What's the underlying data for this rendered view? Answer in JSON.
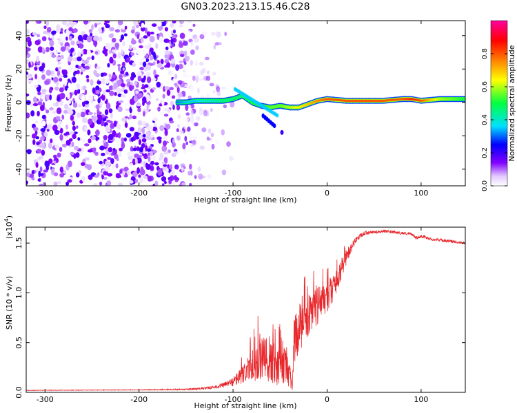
{
  "figure_title": "GN03.2023.213.15.46.C28",
  "chart_data": [
    {
      "type": "heatmap",
      "title": "GN03.2023.213.15.46.C28",
      "xlabel": "Height of straight line (km)",
      "ylabel": "Frequency (Hz)",
      "xlim": [
        -320,
        147
      ],
      "ylim": [
        -50,
        49
      ],
      "x_ticks": [
        -300,
        -200,
        -100,
        0,
        100
      ],
      "y_ticks": [
        -40,
        -20,
        0,
        20,
        40
      ],
      "x_tick_labels": [
        "-300",
        "-200",
        "-100",
        "0",
        "100"
      ],
      "y_tick_labels": [
        "-40",
        "-20",
        "0",
        "20",
        "40"
      ],
      "colorbar": {
        "label": "Normalized spectral amplitude",
        "range": [
          0,
          1
        ],
        "ticks": [
          0.0,
          0.2,
          0.4,
          0.6,
          0.8
        ],
        "tick_labels": [
          "0.0",
          "0.2",
          "0.4",
          "0.6",
          "0.8"
        ],
        "colors": [
          "#ffffff",
          "#8000ff",
          "#0000ff",
          "#00e0ff",
          "#00ff40",
          "#ffff00",
          "#ff8000",
          "#ff0000",
          "#ff00a0"
        ]
      },
      "noise_region": {
        "x_range": [
          -320,
          -130
        ],
        "freq_range": [
          -50,
          49
        ],
        "amplitude": [
          0.0,
          0.2
        ]
      },
      "signal_track": {
        "x": [
          -160,
          -150,
          -140,
          -130,
          -120,
          -110,
          -100,
          -90,
          -80,
          -70,
          -60,
          -50,
          -40,
          -30,
          -20,
          -10,
          0,
          20,
          40,
          60,
          80,
          90,
          100,
          120,
          147
        ],
        "frequency": [
          0,
          0,
          1,
          1,
          1,
          1,
          2,
          4,
          0,
          -2,
          -3,
          -2,
          -3,
          -3,
          -1,
          1,
          2,
          1,
          1,
          1,
          2,
          2,
          1,
          2,
          2
        ],
        "amplitude": [
          0.3,
          0.35,
          0.35,
          0.4,
          0.4,
          0.45,
          0.45,
          0.45,
          0.5,
          0.5,
          0.55,
          0.55,
          0.6,
          0.65,
          0.7,
          0.75,
          0.8,
          0.8,
          0.8,
          0.8,
          0.8,
          0.85,
          0.8,
          0.6,
          0.5
        ]
      }
    },
    {
      "type": "line",
      "xlabel": "Height of straight line (km)",
      "ylabel": "SNR (10 * v/v)",
      "y_multiplier": "(x10",
      "y_multiplier_exp": "4",
      "y_multiplier_close": ")",
      "xlim": [
        -320,
        147
      ],
      "ylim": [
        0,
        16600
      ],
      "x_ticks": [
        -300,
        -200,
        -100,
        0,
        100
      ],
      "y_ticks": [
        0,
        5000,
        10000,
        15000
      ],
      "x_tick_labels": [
        "-300",
        "-200",
        "-100",
        "0",
        "100"
      ],
      "y_tick_labels": [
        "0.0",
        "0.5",
        "1.0",
        "1.5"
      ],
      "series": [
        {
          "color": "#e8282c",
          "x": [
            -320,
            -200,
            -150,
            -130,
            -115,
            -105,
            -100,
            -92,
            -85,
            -80,
            -75,
            -70,
            -65,
            -60,
            -55,
            -50,
            -45,
            -40,
            -37,
            -35,
            -33,
            -30,
            -25,
            -20,
            -15,
            -10,
            -5,
            0,
            5,
            10,
            15,
            20,
            25,
            30,
            40,
            50,
            60,
            70,
            80,
            90,
            95,
            100,
            105,
            110,
            120,
            130,
            140,
            147
          ],
          "y": [
            200,
            250,
            300,
            400,
            600,
            900,
            1100,
            1600,
            2200,
            2600,
            3000,
            3300,
            3100,
            2800,
            2500,
            2900,
            2700,
            1700,
            400,
            4500,
            5800,
            6500,
            7100,
            7600,
            8200,
            8700,
            9100,
            9600,
            10200,
            11000,
            12200,
            13500,
            14400,
            15300,
            16000,
            16100,
            16200,
            16100,
            16000,
            15900,
            15500,
            15700,
            15600,
            15400,
            15300,
            15200,
            15100,
            15000
          ],
          "noise_amp": [
            30,
            30,
            60,
            120,
            200,
            300,
            500,
            800,
            1200,
            1600,
            2000,
            2400,
            2400,
            2200,
            2000,
            2000,
            1800,
            1400,
            300,
            3000,
            2800,
            2400,
            2400,
            2200,
            2000,
            2000,
            1800,
            1600,
            1400,
            1200,
            1000,
            800,
            500,
            300,
            200,
            150,
            150,
            150,
            150,
            150,
            150,
            150,
            150,
            150,
            150,
            150,
            150,
            150
          ]
        }
      ]
    }
  ]
}
